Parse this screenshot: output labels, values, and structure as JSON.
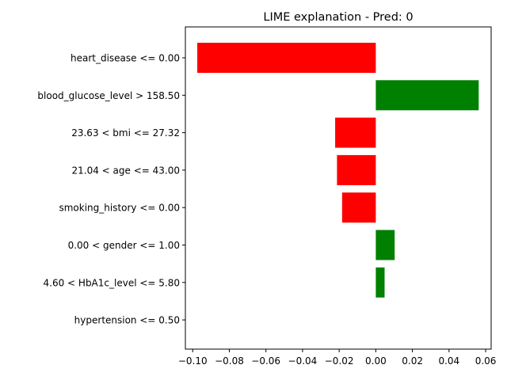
{
  "chart_data": {
    "type": "bar",
    "orientation": "horizontal",
    "title": "LIME explanation - Pred: 0",
    "xlabel": "",
    "ylabel": "",
    "categories": [
      "heart_disease <= 0.00",
      "blood_glucose_level > 158.50",
      "23.63 < bmi <= 27.32",
      "21.04 < age <= 43.00",
      "smoking_history <= 0.00",
      "0.00 < gender <= 1.00",
      "4.60 < HbA1c_level <= 5.80",
      "hypertension <= 0.50"
    ],
    "values": [
      -0.0975,
      0.0562,
      -0.0222,
      -0.0212,
      -0.0184,
      0.0103,
      0.0048,
      0.0
    ],
    "positive_color": "#008000",
    "negative_color": "#ff0000",
    "xlim": [
      -0.104,
      0.063
    ],
    "xticks": [
      -0.1,
      -0.08,
      -0.06,
      -0.04,
      -0.02,
      0.0,
      0.02,
      0.04,
      0.06
    ],
    "xtick_labels": [
      "−0.10",
      "−0.08",
      "−0.06",
      "−0.04",
      "−0.02",
      "0.00",
      "0.02",
      "0.04",
      "0.06"
    ],
    "grid": false,
    "legend": "none"
  }
}
